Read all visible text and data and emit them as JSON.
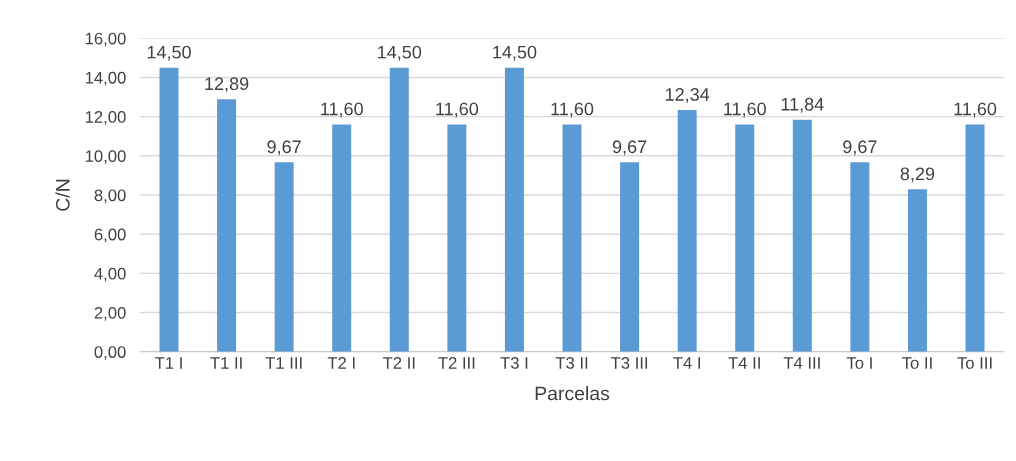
{
  "chart_data": {
    "type": "bar",
    "xlabel": "Parcelas",
    "ylabel": "C/N",
    "categories": [
      "T1 I",
      "T1 II",
      "T1 III",
      "T2 I",
      "T2 II",
      "T2 III",
      "T3 I",
      "T3 II",
      "T3 III",
      "T4 I",
      "T4 II",
      "T4 III",
      "To I",
      "To II",
      "To III"
    ],
    "values": [
      14.5,
      12.89,
      9.67,
      11.6,
      14.5,
      11.6,
      14.5,
      11.6,
      9.67,
      12.34,
      11.6,
      11.84,
      9.67,
      8.29,
      11.6
    ],
    "value_labels": [
      "14,50",
      "12,89",
      "9,67",
      "11,60",
      "14,50",
      "11,60",
      "14,50",
      "11,60",
      "9,67",
      "12,34",
      "11,60",
      "11,84",
      "9,67",
      "8,29",
      "11,60"
    ],
    "color": "#5b9bd5",
    "ylim": [
      0,
      16
    ],
    "yticks": [
      {
        "value": 0,
        "label": "0,00"
      },
      {
        "value": 2,
        "label": "2,00"
      },
      {
        "value": 4,
        "label": "4,00"
      },
      {
        "value": 6,
        "label": "6,00"
      },
      {
        "value": 8,
        "label": "8,00"
      },
      {
        "value": 10,
        "label": "10,00"
      },
      {
        "value": 12,
        "label": "12,00"
      },
      {
        "value": 14,
        "label": "14,00"
      },
      {
        "value": 16,
        "label": "16,00"
      }
    ],
    "grid": "y",
    "legend": false
  }
}
